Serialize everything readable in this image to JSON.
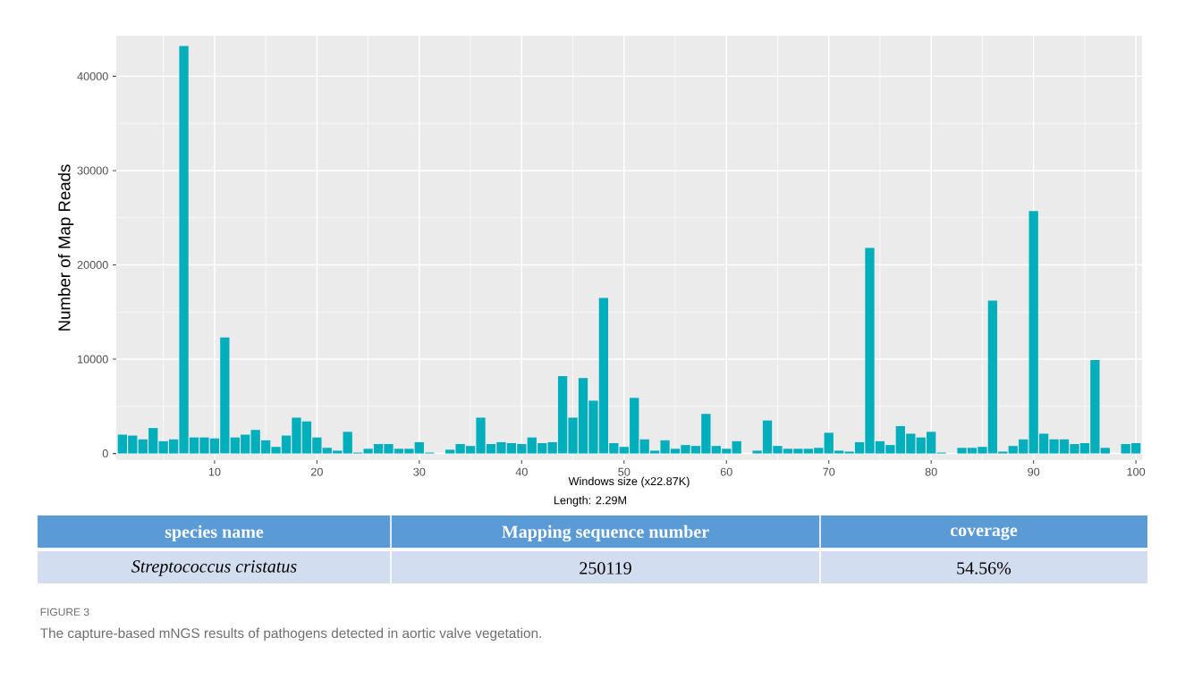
{
  "chart_data": {
    "type": "bar",
    "xlabel": "Windows size (x22.87K)",
    "ylabel": "Number of Map Reads",
    "x": [
      1,
      2,
      3,
      4,
      5,
      6,
      7,
      8,
      9,
      10,
      11,
      12,
      13,
      14,
      15,
      16,
      17,
      18,
      19,
      20,
      21,
      22,
      23,
      24,
      25,
      26,
      27,
      28,
      29,
      30,
      31,
      32,
      33,
      34,
      35,
      36,
      37,
      38,
      39,
      40,
      41,
      42,
      43,
      44,
      45,
      46,
      47,
      48,
      49,
      50,
      51,
      52,
      53,
      54,
      55,
      56,
      57,
      58,
      59,
      60,
      61,
      62,
      63,
      64,
      65,
      66,
      67,
      68,
      69,
      70,
      71,
      72,
      73,
      74,
      75,
      76,
      77,
      78,
      79,
      80,
      81,
      82,
      83,
      84,
      85,
      86,
      87,
      88,
      89,
      90,
      91,
      92,
      93,
      94,
      95,
      96,
      97,
      98,
      99,
      100
    ],
    "values": [
      2000,
      1900,
      1500,
      2700,
      1300,
      1500,
      43200,
      1700,
      1700,
      1600,
      12300,
      1700,
      2000,
      2500,
      1400,
      700,
      1900,
      3800,
      3400,
      1700,
      600,
      300,
      2300,
      100,
      500,
      1000,
      1000,
      500,
      500,
      1200,
      100,
      null,
      400,
      1000,
      800,
      3800,
      1000,
      1200,
      1100,
      1000,
      1700,
      1100,
      1200,
      8200,
      3800,
      8000,
      5600,
      16500,
      1100,
      700,
      5900,
      1500,
      300,
      1400,
      500,
      900,
      800,
      4200,
      800,
      500,
      1300,
      null,
      300,
      3500,
      800,
      500,
      500,
      500,
      600,
      2200,
      300,
      200,
      1200,
      21800,
      1300,
      900,
      2900,
      2100,
      1700,
      2300,
      100,
      null,
      600,
      600,
      700,
      16200,
      200,
      800,
      1500,
      25700,
      2100,
      1500,
      1500,
      1000,
      1100,
      9900,
      600,
      null,
      1000,
      1100
    ],
    "color": "#00afbb",
    "xlim": [
      0.4,
      100.6
    ],
    "ylim": [
      -700,
      44300
    ],
    "xticks": [
      10,
      20,
      30,
      40,
      50,
      60,
      70,
      80,
      90,
      100
    ],
    "yticks": [
      0,
      10000,
      20000,
      30000,
      40000
    ],
    "grid": true,
    "annotations": [
      "Length: 2.29M",
      "species name",
      "Mapping sequence number",
      "coverage",
      "Streptococcus cristatus",
      "250119",
      "54.56%",
      "FIGURE 3",
      "The capture-based mNGS results of pathogens detected in aortic valve vegetation."
    ]
  }
}
